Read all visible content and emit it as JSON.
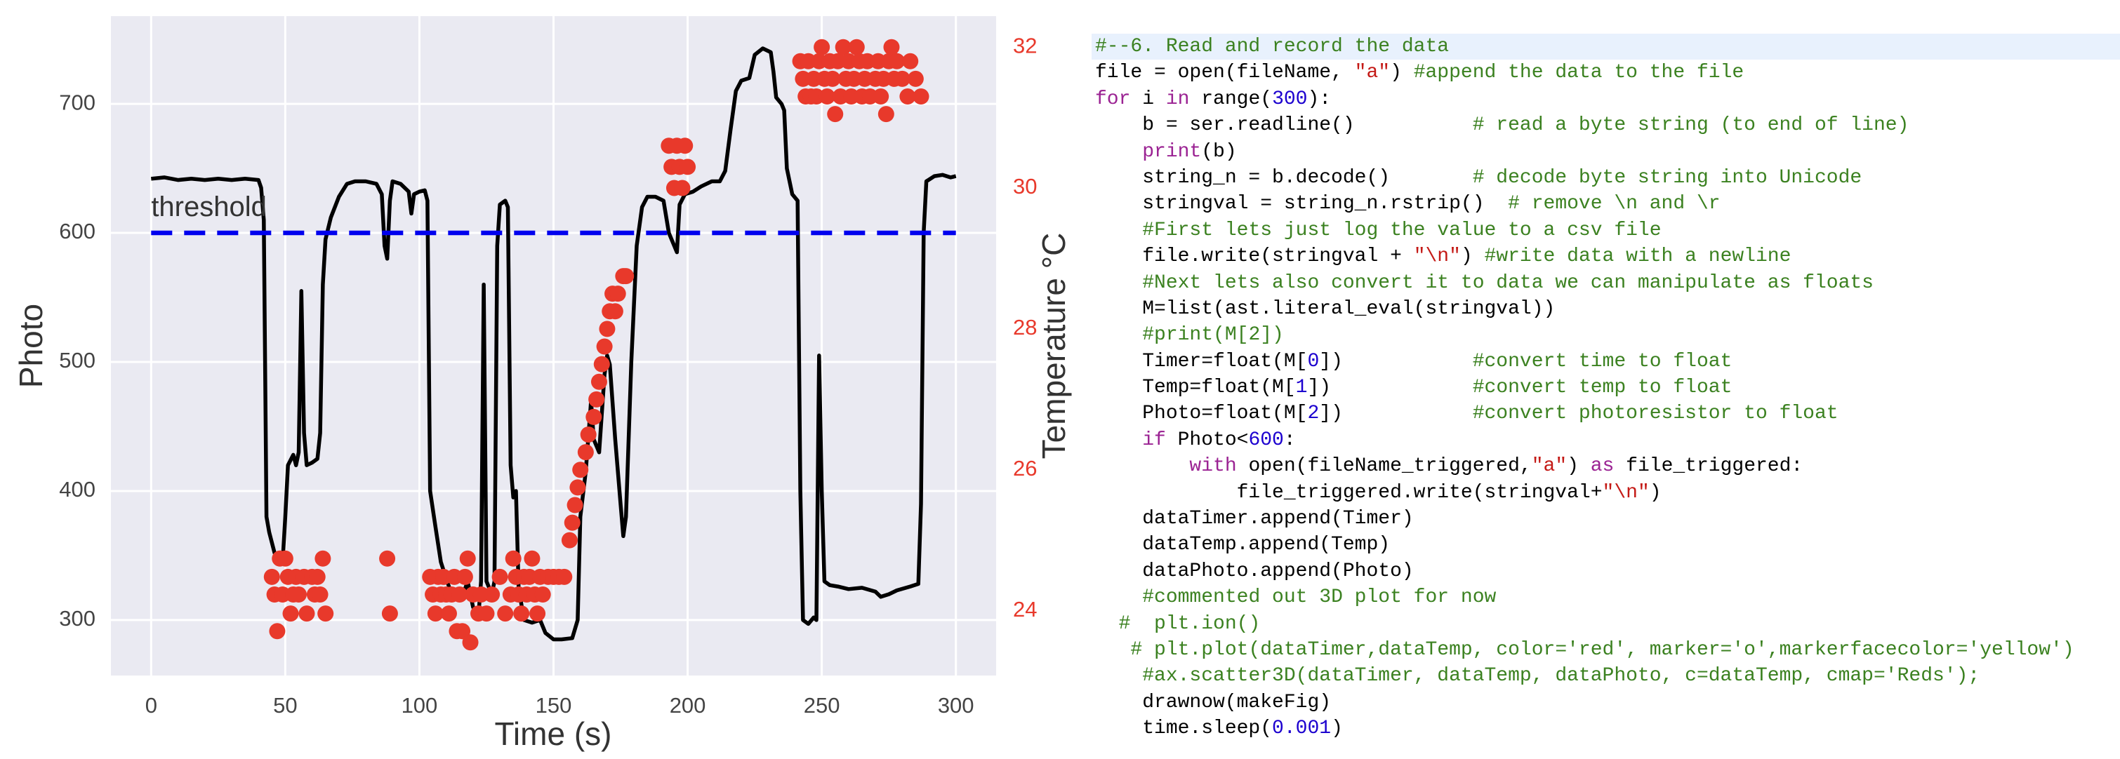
{
  "chart_data": {
    "type": "line",
    "xlabel": "Time (s)",
    "ylabel": "Photo",
    "y2label": "Temperature °C",
    "xlim": [
      -15,
      315
    ],
    "xticks": [
      0,
      50,
      100,
      150,
      200,
      250,
      300
    ],
    "ylim": [
      257,
      768
    ],
    "yticks": [
      300,
      400,
      500,
      600,
      700
    ],
    "y2lim": [
      23.08,
      32.44
    ],
    "y2ticks": [
      24,
      26,
      28,
      30,
      32
    ],
    "y2color": "#e8392b",
    "grid": true,
    "background": "#eaeaf2",
    "reference_line": {
      "value": 600,
      "x": [
        0,
        300
      ],
      "label": "threshold",
      "color": "#0000ee"
    },
    "series": [
      {
        "type": "line",
        "color": "#000000",
        "x": [
          0,
          5,
          10,
          15,
          20,
          25,
          30,
          35,
          40,
          41,
          42,
          43,
          44,
          46,
          49,
          50,
          51,
          53,
          54,
          55,
          56,
          57,
          58,
          60,
          62,
          63,
          64,
          65,
          67,
          70,
          73,
          76,
          80,
          84,
          86,
          87,
          88,
          89,
          90,
          93,
          96,
          97,
          98,
          100,
          102,
          103,
          104,
          106,
          108,
          110,
          112,
          114,
          116,
          118,
          120,
          122,
          123,
          124,
          125,
          127,
          128,
          129,
          130,
          132,
          133,
          134,
          135,
          136,
          137,
          139,
          142,
          145,
          147,
          150,
          153,
          157,
          159,
          160,
          162,
          164,
          165,
          167,
          169,
          170,
          171,
          173,
          175,
          176,
          177,
          179,
          181,
          183,
          185,
          188,
          191,
          193,
          195,
          196,
          197,
          199,
          202,
          205,
          209,
          212,
          214,
          216,
          218,
          220,
          223,
          225,
          228,
          231,
          232,
          233,
          235,
          236,
          237,
          239,
          241,
          242,
          243,
          245,
          247,
          248,
          249,
          250,
          251,
          253,
          256,
          260,
          265,
          270,
          272,
          275,
          278,
          283,
          286,
          287,
          288,
          289,
          292,
          295,
          298,
          300
        ],
        "values": [
          642,
          643,
          641,
          642,
          641,
          642,
          641,
          642,
          641,
          635,
          610,
          380,
          368,
          352,
          345,
          380,
          420,
          428,
          420,
          430,
          555,
          445,
          420,
          422,
          425,
          445,
          560,
          595,
          612,
          628,
          638,
          640,
          640,
          638,
          630,
          590,
          580,
          625,
          640,
          638,
          632,
          615,
          630,
          632,
          633,
          625,
          400,
          372,
          345,
          332,
          320,
          318,
          318,
          330,
          310,
          303,
          330,
          560,
          330,
          320,
          330,
          590,
          622,
          625,
          620,
          420,
          395,
          400,
          325,
          300,
          298,
          300,
          290,
          285,
          285,
          286,
          300,
          380,
          415,
          470,
          440,
          430,
          490,
          505,
          498,
          440,
          390,
          365,
          380,
          500,
          590,
          620,
          628,
          628,
          625,
          600,
          590,
          585,
          622,
          630,
          632,
          636,
          640,
          640,
          648,
          680,
          710,
          718,
          720,
          738,
          743,
          740,
          725,
          705,
          700,
          695,
          650,
          630,
          625,
          400,
          300,
          297,
          302,
          300,
          505,
          400,
          330,
          327,
          326,
          324,
          325,
          322,
          318,
          320,
          323,
          326,
          328,
          390,
          600,
          640,
          644,
          645,
          643,
          644
        ]
      },
      {
        "type": "scatter",
        "axis": "y2",
        "color": "#e8392b",
        "x": [
          45,
          46,
          47,
          48,
          49,
          50,
          51,
          52,
          53,
          54,
          55,
          57,
          58,
          60,
          61,
          62,
          63,
          64,
          65,
          88,
          89,
          104,
          105,
          106,
          107,
          108,
          109,
          110,
          111,
          112,
          113,
          114,
          115,
          116,
          117,
          118,
          119,
          120,
          122,
          123,
          125,
          127,
          130,
          132,
          134,
          135,
          136,
          137,
          138,
          139,
          140,
          141,
          142,
          143,
          144,
          145,
          146,
          148,
          150,
          152,
          154,
          156,
          157,
          158,
          159,
          160,
          162,
          163,
          165,
          166,
          167,
          168,
          169,
          170,
          171,
          172,
          173,
          174,
          176,
          177,
          193,
          194,
          195,
          196,
          197,
          198,
          199,
          200,
          242,
          243,
          244,
          245,
          246,
          247,
          248,
          249,
          250,
          251,
          252,
          253,
          254,
          255,
          256,
          257,
          258,
          259,
          260,
          261,
          262,
          263,
          264,
          265,
          266,
          267,
          268,
          270,
          271,
          272,
          273,
          274,
          275,
          276,
          277,
          278,
          280,
          282,
          283,
          285,
          287
        ],
        "values": [
          24.48,
          24.23,
          23.71,
          24.74,
          24.23,
          24.74,
          24.48,
          23.96,
          24.23,
          24.48,
          24.23,
          24.48,
          23.96,
          24.48,
          24.23,
          24.48,
          24.23,
          24.74,
          23.96,
          24.74,
          23.96,
          24.48,
          24.23,
          23.96,
          24.48,
          24.23,
          24.48,
          24.23,
          23.96,
          24.23,
          24.48,
          23.71,
          24.23,
          23.71,
          24.48,
          24.74,
          23.55,
          24.23,
          23.96,
          24.23,
          23.96,
          24.23,
          24.48,
          23.96,
          24.23,
          24.74,
          24.48,
          24.23,
          23.96,
          24.48,
          24.23,
          24.48,
          24.74,
          24.23,
          23.96,
          24.48,
          24.23,
          24.48,
          24.48,
          24.48,
          24.48,
          25.0,
          25.25,
          25.5,
          25.75,
          26.0,
          26.25,
          26.5,
          26.75,
          27.0,
          27.25,
          27.5,
          27.75,
          28.0,
          28.25,
          28.5,
          28.25,
          28.5,
          28.75,
          28.75,
          30.6,
          30.3,
          30.0,
          30.6,
          30.3,
          30.0,
          30.6,
          30.3,
          31.8,
          31.55,
          31.3,
          31.8,
          31.3,
          31.55,
          31.3,
          31.8,
          32.0,
          31.55,
          31.3,
          31.8,
          31.55,
          31.05,
          31.8,
          31.3,
          32.0,
          31.55,
          31.8,
          31.3,
          31.55,
          32.0,
          31.8,
          31.3,
          31.55,
          31.8,
          31.3,
          31.55,
          31.8,
          31.3,
          31.55,
          31.05,
          31.8,
          32.0,
          31.55,
          31.8,
          31.55,
          31.3,
          31.8,
          31.55,
          31.3
        ]
      }
    ]
  },
  "code": {
    "color": "#000000",
    "highlight_line": 0,
    "highlight_color": "#e8f1fd",
    "lines": [
      [
        {
          "text": "#--6. Read and record the data",
          "color": "#3b8120"
        }
      ],
      [
        {
          "text": "file = open(fileName, "
        },
        {
          "text": "\"a\"",
          "color": "#c41a16"
        },
        {
          "text": ") "
        },
        {
          "text": "#append the data to the file",
          "color": "#3b8120"
        }
      ],
      [
        {
          "text": "for",
          "color": "#9b2393"
        },
        {
          "text": " i "
        },
        {
          "text": "in",
          "color": "#9b2393"
        },
        {
          "text": " range("
        },
        {
          "text": "300",
          "color": "#1c00cf"
        },
        {
          "text": "):"
        }
      ],
      [
        {
          "text": "    b = ser.readline()          "
        },
        {
          "text": "# read a byte string (to end of line)",
          "color": "#3b8120"
        }
      ],
      [
        {
          "text": "    "
        },
        {
          "text": "print",
          "color": "#9b2393"
        },
        {
          "text": "(b)"
        }
      ],
      [
        {
          "text": "    string_n = b.decode()       "
        },
        {
          "text": "# decode byte string into Unicode",
          "color": "#3b8120"
        }
      ],
      [
        {
          "text": "    stringval = string_n.rstrip()  "
        },
        {
          "text": "# remove \\n and \\r",
          "color": "#3b8120"
        }
      ],
      [
        {
          "text": "    "
        },
        {
          "text": "#First lets just log the value to a csv file",
          "color": "#3b8120"
        }
      ],
      [
        {
          "text": "    file.write(stringval + "
        },
        {
          "text": "\"\\n\"",
          "color": "#c41a16"
        },
        {
          "text": ") "
        },
        {
          "text": "#write data with a newline",
          "color": "#3b8120"
        }
      ],
      [
        {
          "text": "    "
        },
        {
          "text": "#Next lets also convert it to data we can manipulate as floats",
          "color": "#3b8120"
        }
      ],
      [
        {
          "text": "    M=list(ast.literal_eval(stringval))"
        }
      ],
      [
        {
          "text": "    "
        },
        {
          "text": "#print(M[2])",
          "color": "#3b8120"
        }
      ],
      [
        {
          "text": "    Timer=float(M["
        },
        {
          "text": "0",
          "color": "#1c00cf"
        },
        {
          "text": "])           "
        },
        {
          "text": "#convert time to float",
          "color": "#3b8120"
        }
      ],
      [
        {
          "text": "    Temp=float(M["
        },
        {
          "text": "1",
          "color": "#1c00cf"
        },
        {
          "text": "])            "
        },
        {
          "text": "#convert temp to float",
          "color": "#3b8120"
        }
      ],
      [
        {
          "text": "    Photo=float(M["
        },
        {
          "text": "2",
          "color": "#1c00cf"
        },
        {
          "text": "])           "
        },
        {
          "text": "#convert photoresistor to float",
          "color": "#3b8120"
        }
      ],
      [
        {
          "text": "    "
        },
        {
          "text": "if",
          "color": "#9b2393"
        },
        {
          "text": " Photo<"
        },
        {
          "text": "600",
          "color": "#1c00cf"
        },
        {
          "text": ":"
        }
      ],
      [
        {
          "text": "        "
        },
        {
          "text": "with",
          "color": "#9b2393"
        },
        {
          "text": " open(fileName_triggered,"
        },
        {
          "text": "\"a\"",
          "color": "#c41a16"
        },
        {
          "text": ") "
        },
        {
          "text": "as",
          "color": "#9b2393"
        },
        {
          "text": " file_triggered:"
        }
      ],
      [
        {
          "text": "            file_triggered.write(stringval+"
        },
        {
          "text": "\"\\n\"",
          "color": "#c41a16"
        },
        {
          "text": ")"
        }
      ],
      [
        {
          "text": "    dataTimer.append(Timer)"
        }
      ],
      [
        {
          "text": "    dataTemp.append(Temp)"
        }
      ],
      [
        {
          "text": "    dataPhoto.append(Photo)"
        }
      ],
      [
        {
          "text": "    "
        },
        {
          "text": "#commented out 3D plot for now",
          "color": "#3b8120"
        }
      ],
      [
        {
          "text": "  "
        },
        {
          "text": "#  plt.ion()",
          "color": "#3b8120"
        }
      ],
      [
        {
          "text": "   "
        },
        {
          "text": "# plt.plot(dataTimer,dataTemp, color='red', marker='o',markerfacecolor='yellow')",
          "color": "#3b8120"
        }
      ],
      [
        {
          "text": "    "
        },
        {
          "text": "#ax.scatter3D(dataTimer, dataTemp, dataPhoto, c=dataTemp, cmap='Reds');",
          "color": "#3b8120"
        }
      ],
      [
        {
          "text": "    drawnow(makeFig)"
        }
      ],
      [
        {
          "text": "    time.sleep("
        },
        {
          "text": "0.001",
          "color": "#1c00cf"
        },
        {
          "text": ")"
        }
      ]
    ]
  }
}
